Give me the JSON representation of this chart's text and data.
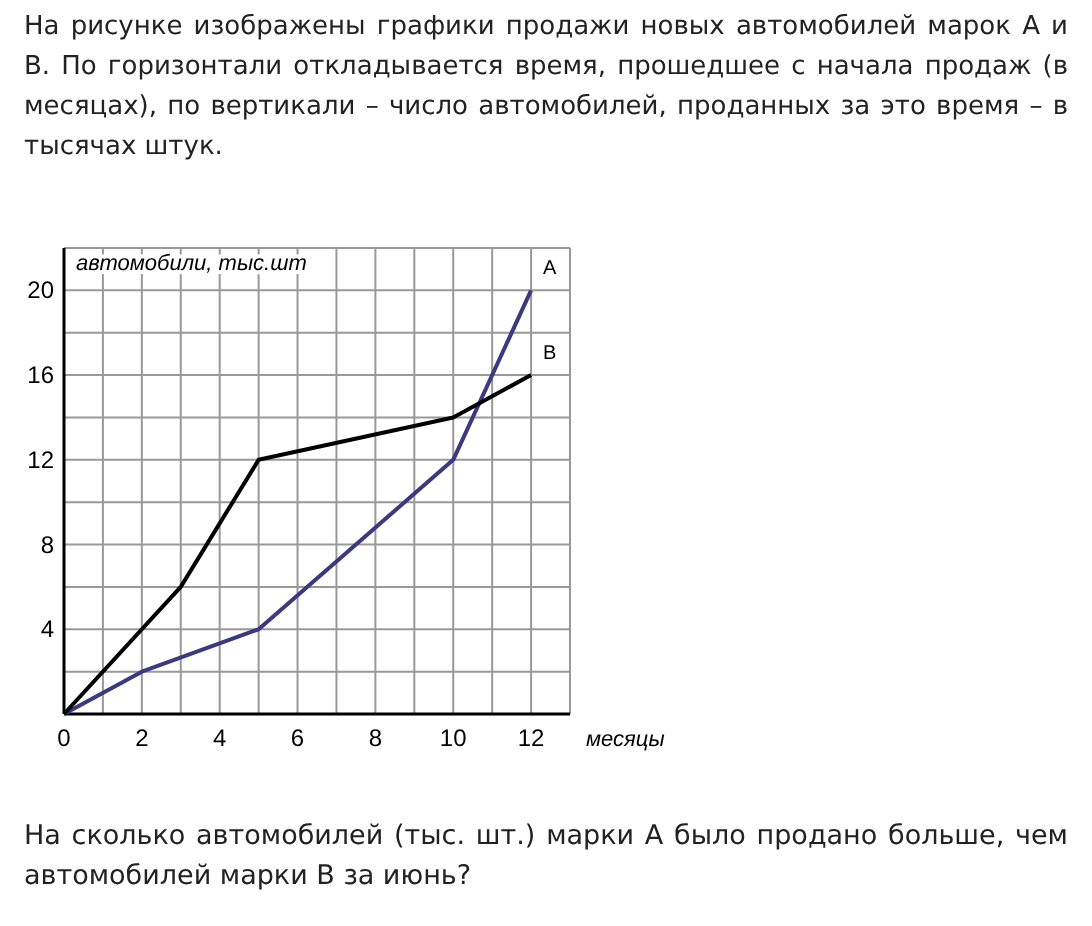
{
  "chart_data": {
    "type": "line",
    "title": "На рисунке изображены графики продажи новых автомобилей марок А и В. По горизонтали откладывается время, прошедшее с начала продаж (в месяцах), по вертикали – число автомобилей, проданных за это время – в тысячах штук.",
    "xlabel": "месяцы",
    "ylabel": "автомобили, тыс.шт",
    "annotations": [
      "На сколько автомобилей (тыс. шт.) марки А было продано больше, чем автомобилей марки В за июнь?"
    ],
    "xlim": [
      0,
      13
    ],
    "ylim": [
      0,
      22
    ],
    "xticks": [
      0,
      {
        "value": 1,
        "label": null
      },
      2,
      {
        "value": 3,
        "label": null
      },
      4,
      {
        "value": 5,
        "label": null
      },
      6,
      {
        "value": 7,
        "label": null
      },
      8,
      {
        "value": 9,
        "label": null
      },
      10,
      {
        "value": 11,
        "label": null
      },
      12,
      {
        "value": 13,
        "label": null
      }
    ],
    "yticks": [
      {
        "value": 0,
        "label": null
      },
      {
        "value": 2,
        "label": null
      },
      4,
      {
        "value": 6,
        "label": null
      },
      8,
      {
        "value": 10,
        "label": null
      },
      12,
      {
        "value": 14,
        "label": null
      },
      16,
      {
        "value": 18,
        "label": null
      },
      20,
      {
        "value": 22,
        "label": null
      }
    ],
    "grid": true,
    "marker": "none",
    "line_style": "solid",
    "series": [
      {
        "name": "A",
        "color": "#3a3a80",
        "x": [
          0,
          2,
          5,
          10,
          12
        ],
        "values": [
          0,
          2,
          4,
          12,
          20
        ]
      },
      {
        "name": "B",
        "color": "#000000",
        "x": [
          0,
          3,
          5,
          10,
          12
        ],
        "values": [
          0,
          6,
          12,
          14,
          16
        ]
      }
    ]
  }
}
